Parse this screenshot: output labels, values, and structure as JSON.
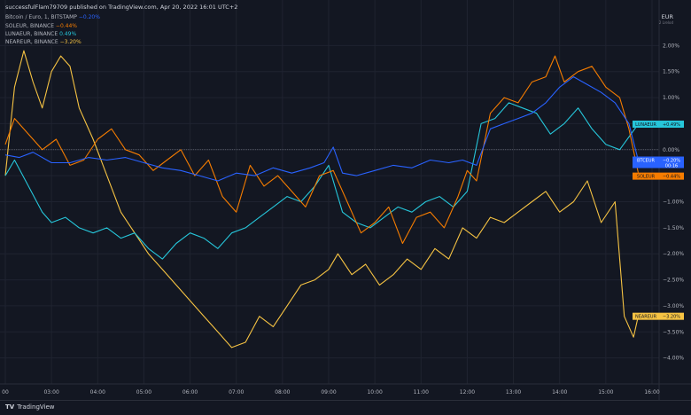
{
  "header": {
    "publish_line": "successfulFlam79709 published on TradingView.com, Apr 20, 2022 16:01 UTC+2",
    "currency": "EUR",
    "scale_mode": "2 Lrelod"
  },
  "legend": [
    {
      "name": "Bitcoin / Euro, 1, BITSTAMP",
      "change": "−0.20%",
      "color": "#2962ff"
    },
    {
      "name": "SOLEUR, BINANCE",
      "change": "−0.44%",
      "color": "#f57c00"
    },
    {
      "name": "LUNAEUR, BINANCE",
      "change": "0.49%",
      "color": "#26c6da"
    },
    {
      "name": "NEAREUR, BINANCE",
      "change": "−3.20%",
      "color": "#f6c343"
    }
  ],
  "price_tags": [
    {
      "label": "LUNAEUR",
      "value": "+0.49%",
      "color": "#26c6da",
      "text_color": "#131722"
    },
    {
      "label": "BTCEUR",
      "value": "−0.20%",
      "extra": "00:16",
      "color": "#2962ff",
      "text_color": "#ffffff"
    },
    {
      "label": "SOLEUR",
      "value": "−0.44%",
      "color": "#f57c00",
      "text_color": "#131722"
    },
    {
      "label": "NEAREUR",
      "value": "−3.20%",
      "color": "#f6c343",
      "text_color": "#131722"
    }
  ],
  "footer": {
    "brand": "TradingView"
  },
  "chart_data": {
    "type": "line",
    "x_ticks": [
      "00",
      "03:00",
      "04:00",
      "05:00",
      "06:00",
      "07:00",
      "08:00",
      "09:00",
      "10:00",
      "11:00",
      "12:00",
      "13:00",
      "14:00",
      "15:00",
      "16:00"
    ],
    "x_tick_hours": [
      2,
      3,
      4,
      5,
      6,
      7,
      8,
      9,
      10,
      11,
      12,
      13,
      14,
      15,
      16
    ],
    "xlim": [
      2,
      16
    ],
    "y_ticks": [
      "2.00%",
      "1.50%",
      "1.00%",
      "0.50%",
      "0.00%",
      "−0.50%",
      "−1.00%",
      "−1.50%",
      "−2.00%",
      "−2.50%",
      "−3.00%",
      "−3.50%",
      "−4.00%"
    ],
    "y_tick_values": [
      2.0,
      1.5,
      1.0,
      0.5,
      0.0,
      -0.5,
      -1.0,
      -1.5,
      -2.0,
      -2.5,
      -3.0,
      -3.5,
      -4.0
    ],
    "ylim": [
      -4.5,
      2.5
    ],
    "series": [
      {
        "name": "Bitcoin / Euro, 1, BITSTAMP",
        "color": "#2962ff",
        "x": [
          2.0,
          2.3,
          2.6,
          3.0,
          3.4,
          3.8,
          4.2,
          4.6,
          5.0,
          5.4,
          5.8,
          6.2,
          6.6,
          7.0,
          7.4,
          7.8,
          8.2,
          8.6,
          8.9,
          9.1,
          9.3,
          9.6,
          10.0,
          10.4,
          10.8,
          11.2,
          11.6,
          11.9,
          12.2,
          12.5,
          12.8,
          13.1,
          13.4,
          13.7,
          14.0,
          14.3,
          14.6,
          14.9,
          15.2,
          15.5,
          15.7
        ],
        "values": [
          -0.1,
          -0.15,
          -0.05,
          -0.25,
          -0.25,
          -0.15,
          -0.2,
          -0.15,
          -0.25,
          -0.35,
          -0.4,
          -0.5,
          -0.6,
          -0.45,
          -0.5,
          -0.35,
          -0.45,
          -0.35,
          -0.25,
          0.05,
          -0.45,
          -0.5,
          -0.4,
          -0.3,
          -0.35,
          -0.2,
          -0.25,
          -0.2,
          -0.3,
          0.4,
          0.5,
          0.6,
          0.7,
          0.9,
          1.2,
          1.4,
          1.25,
          1.1,
          0.9,
          0.5,
          -0.2
        ]
      },
      {
        "name": "SOLEUR, BINANCE",
        "color": "#f57c00",
        "x": [
          2.0,
          2.2,
          2.5,
          2.8,
          3.1,
          3.4,
          3.7,
          4.0,
          4.3,
          4.6,
          4.9,
          5.2,
          5.5,
          5.8,
          6.1,
          6.4,
          6.7,
          7.0,
          7.3,
          7.6,
          7.9,
          8.2,
          8.5,
          8.8,
          9.1,
          9.4,
          9.7,
          10.0,
          10.3,
          10.6,
          10.9,
          11.2,
          11.5,
          11.8,
          12.0,
          12.2,
          12.5,
          12.8,
          13.1,
          13.4,
          13.7,
          13.9,
          14.1,
          14.4,
          14.7,
          15.0,
          15.3,
          15.5,
          15.7
        ],
        "values": [
          0.1,
          0.6,
          0.3,
          0.0,
          0.2,
          -0.3,
          -0.2,
          0.2,
          0.4,
          0.0,
          -0.1,
          -0.4,
          -0.2,
          0.0,
          -0.5,
          -0.2,
          -0.9,
          -1.2,
          -0.3,
          -0.7,
          -0.5,
          -0.8,
          -1.1,
          -0.5,
          -0.4,
          -1.0,
          -1.6,
          -1.4,
          -1.1,
          -1.8,
          -1.3,
          -1.2,
          -1.5,
          -0.9,
          -0.4,
          -0.6,
          0.7,
          1.0,
          0.9,
          1.3,
          1.4,
          1.8,
          1.3,
          1.5,
          1.6,
          1.2,
          1.0,
          0.4,
          -0.44
        ]
      },
      {
        "name": "LUNAEUR, BINANCE",
        "color": "#26c6da",
        "x": [
          2.0,
          2.2,
          2.5,
          2.8,
          3.0,
          3.3,
          3.6,
          3.9,
          4.2,
          4.5,
          4.8,
          5.1,
          5.4,
          5.7,
          6.0,
          6.3,
          6.6,
          6.9,
          7.2,
          7.5,
          7.8,
          8.1,
          8.4,
          8.7,
          9.0,
          9.3,
          9.6,
          9.9,
          10.2,
          10.5,
          10.8,
          11.1,
          11.4,
          11.7,
          12.0,
          12.3,
          12.6,
          12.9,
          13.2,
          13.5,
          13.8,
          14.1,
          14.4,
          14.7,
          15.0,
          15.3,
          15.7
        ],
        "values": [
          -0.5,
          -0.2,
          -0.7,
          -1.2,
          -1.4,
          -1.3,
          -1.5,
          -1.6,
          -1.5,
          -1.7,
          -1.6,
          -1.9,
          -2.1,
          -1.8,
          -1.6,
          -1.7,
          -1.9,
          -1.6,
          -1.5,
          -1.3,
          -1.1,
          -0.9,
          -1.0,
          -0.7,
          -0.3,
          -1.2,
          -1.4,
          -1.5,
          -1.3,
          -1.1,
          -1.2,
          -1.0,
          -0.9,
          -1.1,
          -0.8,
          0.5,
          0.6,
          0.9,
          0.8,
          0.7,
          0.3,
          0.5,
          0.8,
          0.4,
          0.1,
          0.0,
          0.49
        ]
      },
      {
        "name": "NEAREUR, BINANCE",
        "color": "#f6c343",
        "x": [
          2.0,
          2.2,
          2.4,
          2.6,
          2.8,
          3.0,
          3.2,
          3.4,
          3.6,
          3.9,
          4.2,
          4.5,
          4.8,
          5.1,
          5.4,
          5.7,
          6.0,
          6.3,
          6.6,
          6.9,
          7.2,
          7.5,
          7.8,
          8.1,
          8.4,
          8.7,
          9.0,
          9.2,
          9.5,
          9.8,
          10.1,
          10.4,
          10.7,
          11.0,
          11.3,
          11.6,
          11.9,
          12.2,
          12.5,
          12.8,
          13.1,
          13.4,
          13.7,
          14.0,
          14.3,
          14.6,
          14.9,
          15.2,
          15.4,
          15.6,
          15.7
        ],
        "values": [
          -0.5,
          1.2,
          1.9,
          1.3,
          0.8,
          1.5,
          1.8,
          1.6,
          0.8,
          0.2,
          -0.5,
          -1.2,
          -1.6,
          -2.0,
          -2.3,
          -2.6,
          -2.9,
          -3.2,
          -3.5,
          -3.8,
          -3.7,
          -3.2,
          -3.4,
          -3.0,
          -2.6,
          -2.5,
          -2.3,
          -2.0,
          -2.4,
          -2.2,
          -2.6,
          -2.4,
          -2.1,
          -2.3,
          -1.9,
          -2.1,
          -1.5,
          -1.7,
          -1.3,
          -1.4,
          -1.2,
          -1.0,
          -0.8,
          -1.2,
          -1.0,
          -0.6,
          -1.4,
          -1.0,
          -3.2,
          -3.6,
          -3.2
        ]
      }
    ]
  }
}
